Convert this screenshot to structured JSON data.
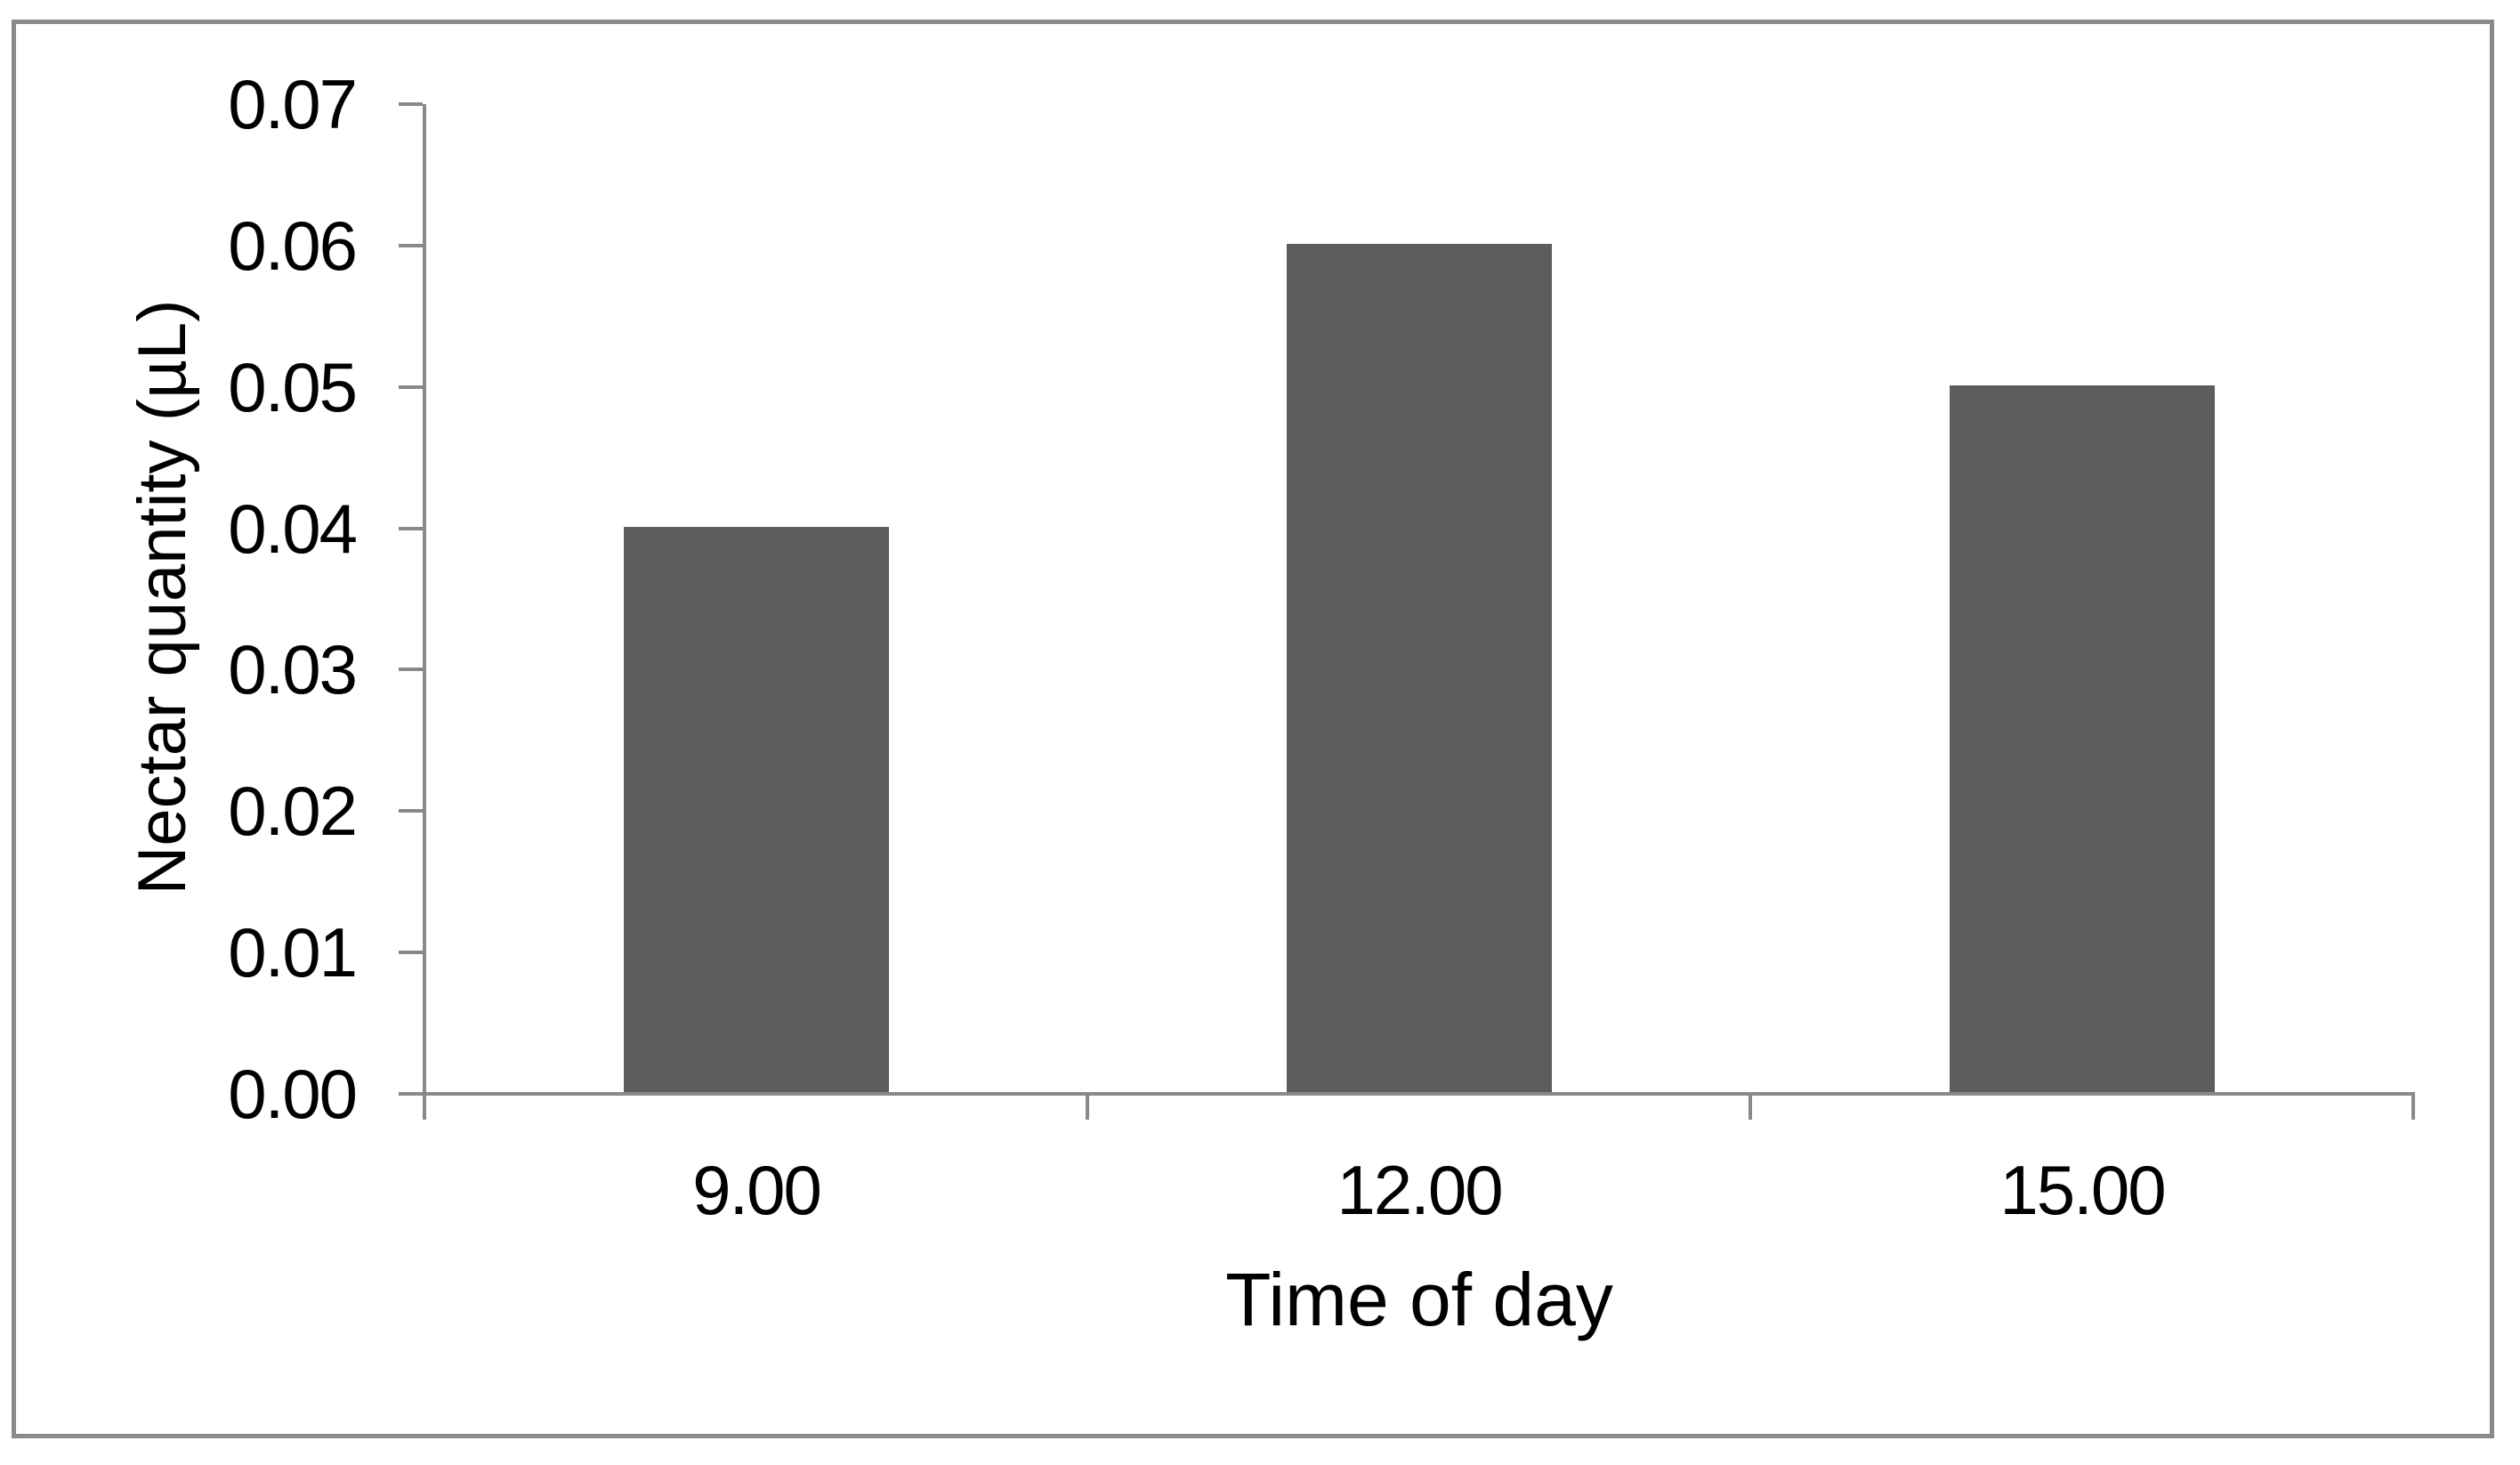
{
  "figure": {
    "background": "#ffffff",
    "frame_color": "#8a8a8a",
    "axis_color": "#898989",
    "bar_color": "#5d5d5d",
    "text_color": "#000000"
  },
  "chart_data": {
    "type": "bar",
    "title": "",
    "categories": [
      "9.00",
      "12.00",
      "15.00"
    ],
    "values": [
      0.04,
      0.06,
      0.05
    ],
    "series": [
      {
        "name": "Nectar quantity",
        "values": [
          0.04,
          0.06,
          0.05
        ]
      }
    ],
    "xlabel": "Time of day",
    "ylabel": "Nectar quantity (µL)",
    "ylim": [
      0,
      0.07
    ],
    "ytick_step": 0.01,
    "yticks": [
      "0.00",
      "0.01",
      "0.02",
      "0.03",
      "0.04",
      "0.05",
      "0.06",
      "0.07"
    ],
    "grid": false,
    "legend": false,
    "bar_gap_ratio": 1.5
  }
}
